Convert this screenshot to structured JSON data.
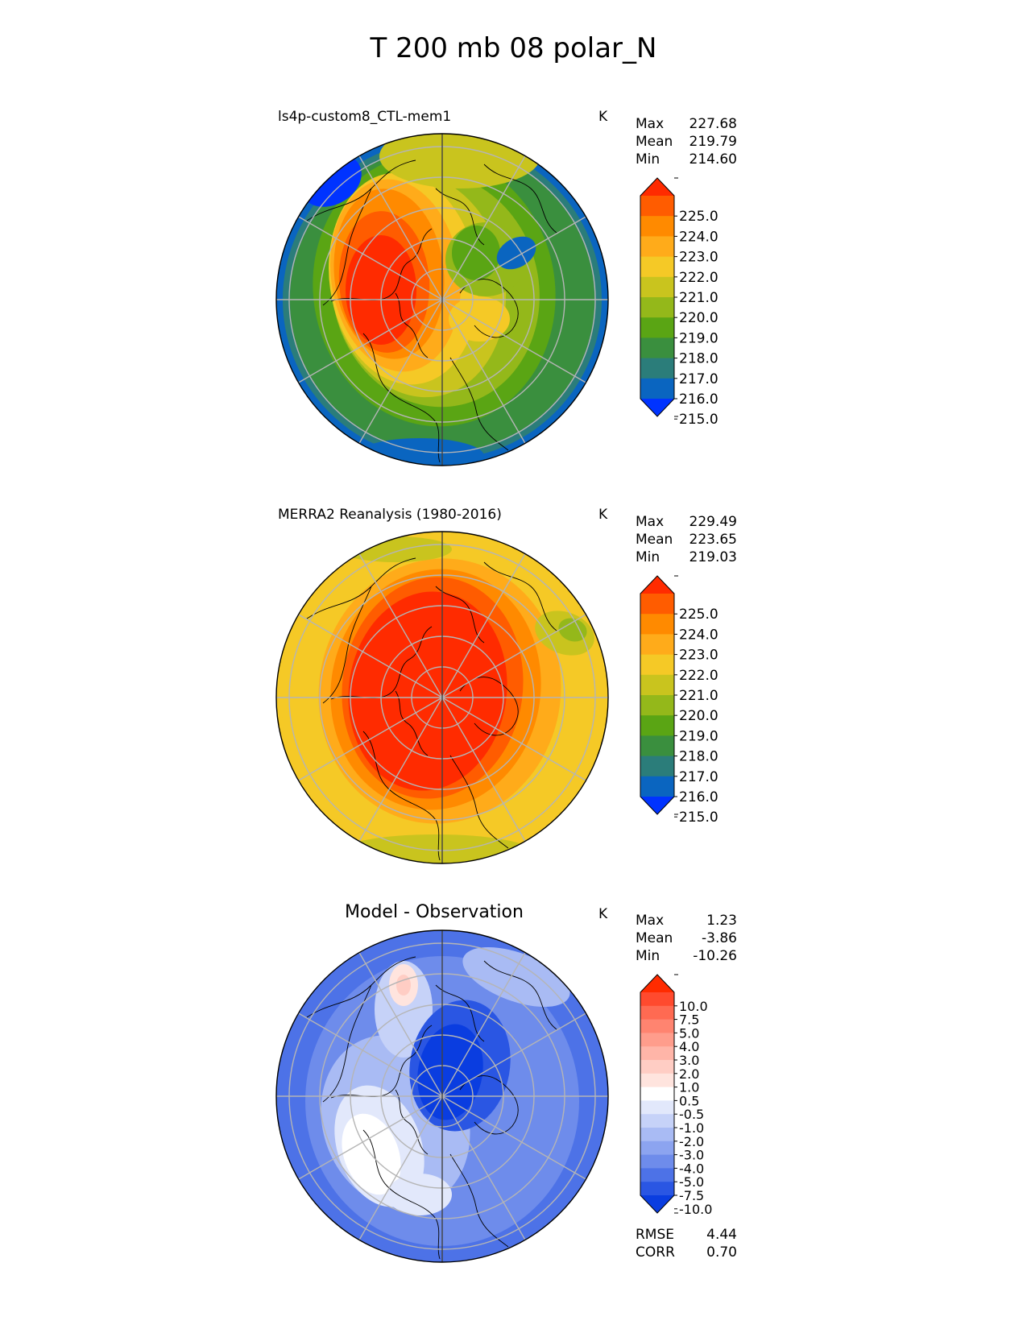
{
  "title": "T 200 mb 08 polar_N",
  "chart_data": [
    {
      "type": "heatmap",
      "projection": "north-polar-stereographic",
      "title": "ls4p-custom8_CTL-mem1",
      "units": "K",
      "stats": [
        {
          "label": "Max",
          "value": "227.68"
        },
        {
          "label": "Mean",
          "value": "219.79"
        },
        {
          "label": "Min",
          "value": "214.60"
        }
      ],
      "colorbar": {
        "ticks": [
          "225.0",
          "224.0",
          "223.0",
          "222.0",
          "221.0",
          "220.0",
          "219.0",
          "218.0",
          "217.0",
          "216.0",
          "215.0"
        ],
        "colors": [
          "#ff2b00",
          "#ff5c00",
          "#ff8a00",
          "#ffab1a",
          "#f5c926",
          "#c9c41e",
          "#94b81a",
          "#5aa514",
          "#3a8f3e",
          "#2b7d7a",
          "#0a65c0",
          "#0033ff"
        ],
        "extend": "both"
      }
    },
    {
      "type": "heatmap",
      "projection": "north-polar-stereographic",
      "title": "MERRA2 Reanalysis (1980-2016)",
      "units": "K",
      "stats": [
        {
          "label": "Max",
          "value": "229.49"
        },
        {
          "label": "Mean",
          "value": "223.65"
        },
        {
          "label": "Min",
          "value": "219.03"
        }
      ],
      "colorbar": {
        "ticks": [
          "225.0",
          "224.0",
          "223.0",
          "222.0",
          "221.0",
          "220.0",
          "219.0",
          "218.0",
          "217.0",
          "216.0",
          "215.0"
        ],
        "colors": [
          "#ff2b00",
          "#ff5c00",
          "#ff8a00",
          "#ffab1a",
          "#f5c926",
          "#c9c41e",
          "#94b81a",
          "#5aa514",
          "#3a8f3e",
          "#2b7d7a",
          "#0a65c0",
          "#0033ff"
        ],
        "extend": "both"
      }
    },
    {
      "type": "heatmap",
      "projection": "north-polar-stereographic",
      "title": "Model - Observation",
      "units": "K",
      "stats": [
        {
          "label": "Max",
          "value": "1.23"
        },
        {
          "label": "Mean",
          "value": "-3.86"
        },
        {
          "label": "Min",
          "value": "-10.26"
        }
      ],
      "colorbar": {
        "ticks": [
          "10.0",
          "7.5",
          "5.0",
          "4.0",
          "3.0",
          "2.0",
          "1.0",
          "0.5",
          "-0.5",
          "-1.0",
          "-2.0",
          "-3.0",
          "-4.0",
          "-5.0",
          "-7.5",
          "-10.0"
        ],
        "colors": [
          "#ff2b00",
          "#ff4a2e",
          "#ff6a52",
          "#ff8470",
          "#ff9d8c",
          "#ffb5a8",
          "#ffcdc4",
          "#ffe4de",
          "#ffffff",
          "#e2e8fb",
          "#c6d2f8",
          "#a9bbf4",
          "#8ca4f0",
          "#6e8ceb",
          "#4d72e7",
          "#2a56e3",
          "#0a3de0"
        ],
        "extend": "both"
      },
      "footer_stats": [
        {
          "label": "RMSE",
          "value": "4.44"
        },
        {
          "label": "CORR",
          "value": "0.70"
        }
      ]
    }
  ]
}
